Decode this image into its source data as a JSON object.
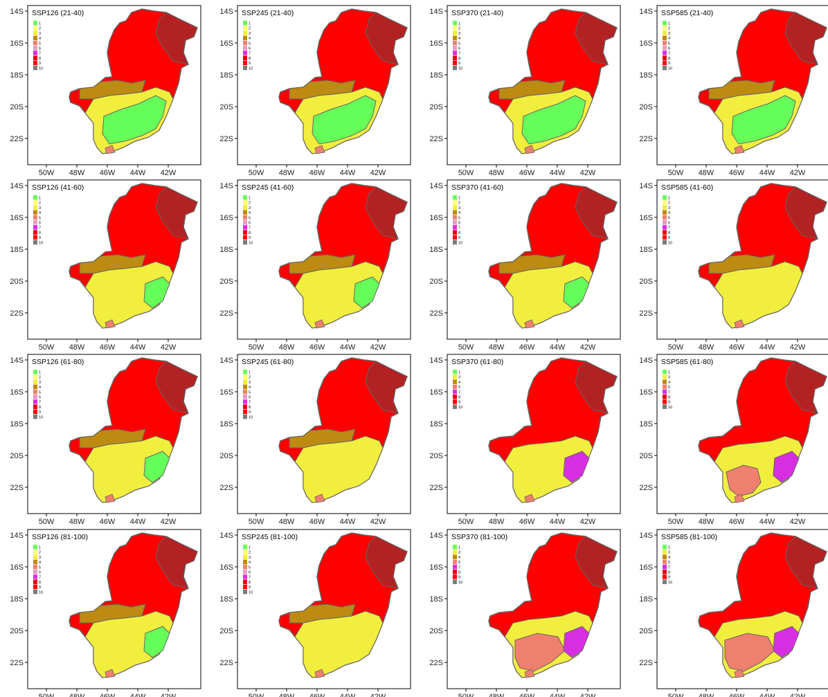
{
  "colors": {
    "1": "#66FF5A",
    "2": "#FFFF77",
    "3": "#F2EE3E",
    "4": "#BD8A12",
    "5": "#F0806E",
    "6": "#E89DBF",
    "7": "#D82EE2",
    "8": "#E6000F",
    "9": "#FF0000",
    "10": "#7A7A7A",
    "darkred": "#B22222",
    "border": "#646464"
  },
  "axis": {
    "y_ticks": [
      "14S",
      "16S",
      "18S",
      "20S",
      "22S"
    ],
    "x_ticks": [
      "50W",
      "48W",
      "46W",
      "44W",
      "42W"
    ]
  },
  "legend_full": [
    "1",
    "2",
    "3",
    "4",
    "5",
    "6",
    "7",
    "8",
    "9",
    "10"
  ],
  "legend_short": [
    "1",
    "3",
    "4",
    "5",
    "7",
    "8",
    "9",
    "10"
  ],
  "panels": [
    {
      "title": "SSP126 (21-40)",
      "legend": "full",
      "stage": 0
    },
    {
      "title": "SSP245 (21-40)",
      "legend": "full",
      "stage": 0
    },
    {
      "title": "SSP370 (21-40)",
      "legend": "full",
      "stage": 0
    },
    {
      "title": "SSP585 (21-40)",
      "legend": "full",
      "stage": 0
    },
    {
      "title": "SSP126 (41-60)",
      "legend": "full",
      "stage": 1
    },
    {
      "title": "SSP245 (41-60)",
      "legend": "full",
      "stage": 1
    },
    {
      "title": "SSP370 (41-60)",
      "legend": "full",
      "stage": 1
    },
    {
      "title": "SSP585 (41-60)",
      "legend": "full",
      "stage": 2
    },
    {
      "title": "SSP126 (61-80)",
      "legend": "full",
      "stage": 1
    },
    {
      "title": "SSP245 (61-80)",
      "legend": "full",
      "stage": 2
    },
    {
      "title": "SSP370 (61-80)",
      "legend": "short",
      "stage": 3
    },
    {
      "title": "SSP585 (61-80)",
      "legend": "short",
      "stage": 4
    },
    {
      "title": "SSP126 (81-100)",
      "legend": "full",
      "stage": 1
    },
    {
      "title": "SSP245 (81-100)",
      "legend": "full",
      "stage": 2
    },
    {
      "title": "SSP370 (81-100)",
      "legend": "short",
      "stage": 5
    },
    {
      "title": "SSP585 (81-100)",
      "legend": "short",
      "stage": 6
    }
  ]
}
